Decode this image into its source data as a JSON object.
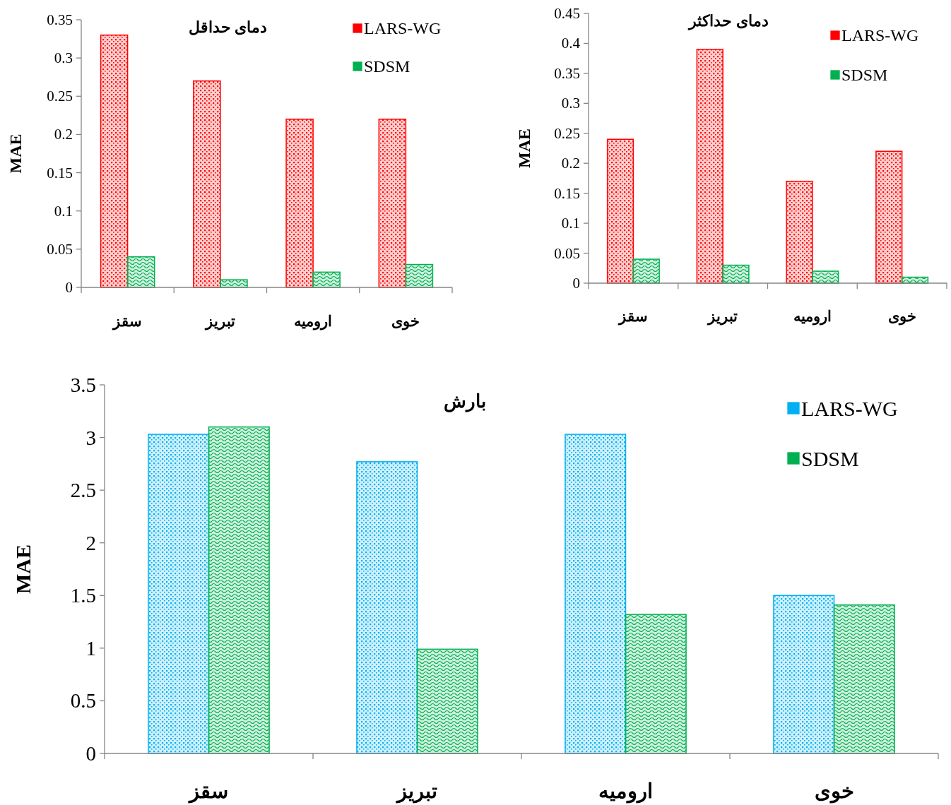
{
  "chart_data": [
    {
      "type": "bar",
      "title": "دمای حداقل",
      "ylabel": "MAE",
      "categories": [
        "سقز",
        "تبریز",
        "ارومیه",
        "خوی"
      ],
      "series": [
        {
          "name": "LARS-WG",
          "color": "#ff0000",
          "values": [
            0.33,
            0.27,
            0.22,
            0.22
          ]
        },
        {
          "name": "SDSM",
          "color": "#00b050",
          "values": [
            0.04,
            0.01,
            0.02,
            0.03
          ]
        }
      ],
      "ylim": [
        0,
        0.35
      ],
      "yticks": [
        0,
        0.05,
        0.1,
        0.15,
        0.2,
        0.25,
        0.3,
        0.35
      ],
      "grid": false,
      "legend": "top right"
    },
    {
      "type": "bar",
      "title": "دمای حداکثر",
      "ylabel": "MAE",
      "categories": [
        "سقز",
        "تبریز",
        "ارومیه",
        "خوی"
      ],
      "series": [
        {
          "name": "LARS-WG",
          "color": "#ff0000",
          "values": [
            0.24,
            0.39,
            0.17,
            0.22
          ]
        },
        {
          "name": "SDSM",
          "color": "#00b050",
          "values": [
            0.04,
            0.03,
            0.02,
            0.01
          ]
        }
      ],
      "ylim": [
        0,
        0.45
      ],
      "yticks": [
        0,
        0.05,
        0.1,
        0.15,
        0.2,
        0.25,
        0.3,
        0.35,
        0.4,
        0.45
      ],
      "grid": false,
      "legend": "top right"
    },
    {
      "type": "bar",
      "title": "بارش",
      "ylabel": "MAE",
      "categories": [
        "سقز",
        "تبریز",
        "ارومیه",
        "خوی"
      ],
      "series": [
        {
          "name": "LARS-WG",
          "color": "#00b0f0",
          "values": [
            3.03,
            2.77,
            3.03,
            1.5
          ]
        },
        {
          "name": "SDSM",
          "color": "#00b050",
          "values": [
            3.1,
            0.99,
            1.32,
            1.41
          ]
        }
      ],
      "ylim": [
        0,
        3.5
      ],
      "yticks": [
        0,
        0.5,
        1,
        1.5,
        2,
        2.5,
        3,
        3.5
      ],
      "grid": false,
      "legend": "top right"
    }
  ]
}
